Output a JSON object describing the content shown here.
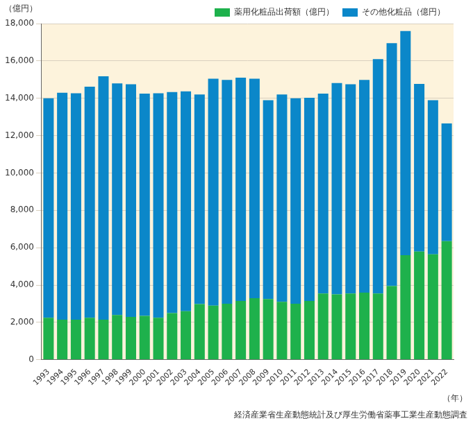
{
  "chart_data": {
    "type": "bar",
    "stacked": true,
    "ylabel": "（億円）",
    "xlabel": "（年）",
    "source": "経済産業省生産動態統計及び厚生労働省薬事工業生産動態調査",
    "categories": [
      "1993",
      "1994",
      "1995",
      "1996",
      "1997",
      "1998",
      "1999",
      "2000",
      "2001",
      "2002",
      "2003",
      "2004",
      "2005",
      "2006",
      "2007",
      "2008",
      "2009",
      "2010",
      "2011",
      "2012",
      "2013",
      "2014",
      "2015",
      "2016",
      "2017",
      "2018",
      "2019",
      "2020",
      "2021",
      "2022"
    ],
    "series": [
      {
        "name": "薬用化粧品出荷額（億円）",
        "color": "#1eb14c",
        "values": [
          2250,
          2150,
          2150,
          2250,
          2150,
          2400,
          2300,
          2350,
          2250,
          2500,
          2600,
          2980,
          2900,
          3000,
          3150,
          3300,
          3250,
          3100,
          3000,
          3150,
          3550,
          3500,
          3550,
          3600,
          3550,
          3950,
          5600,
          5800,
          5650,
          6350
        ]
      },
      {
        "name": "その他化粧品（億円）",
        "color": "#0b87c9",
        "values": [
          11750,
          12150,
          12120,
          12370,
          13030,
          12400,
          12450,
          11900,
          12020,
          11830,
          11770,
          11220,
          12150,
          11980,
          11950,
          11750,
          10650,
          11100,
          11000,
          10880,
          10700,
          11320,
          11200,
          11380,
          12550,
          13000,
          12000,
          8970,
          8250,
          6300
        ]
      }
    ],
    "ylim": [
      0,
      18000
    ],
    "yticks": [
      0,
      {
        "value": 2000,
        "label": "2,000"
      },
      {
        "value": 4000,
        "label": "4,000"
      },
      {
        "value": 6000,
        "label": "6,000"
      },
      {
        "value": 8000,
        "label": "8,000"
      },
      {
        "value": 10000,
        "label": "10,000"
      },
      {
        "value": 12000,
        "label": "12,000"
      },
      {
        "value": 14000,
        "label": "14,000"
      },
      {
        "value": 16000,
        "label": "16,000"
      },
      {
        "value": 18000,
        "label": "18,000"
      }
    ],
    "grid": true,
    "legend": "top-right"
  }
}
